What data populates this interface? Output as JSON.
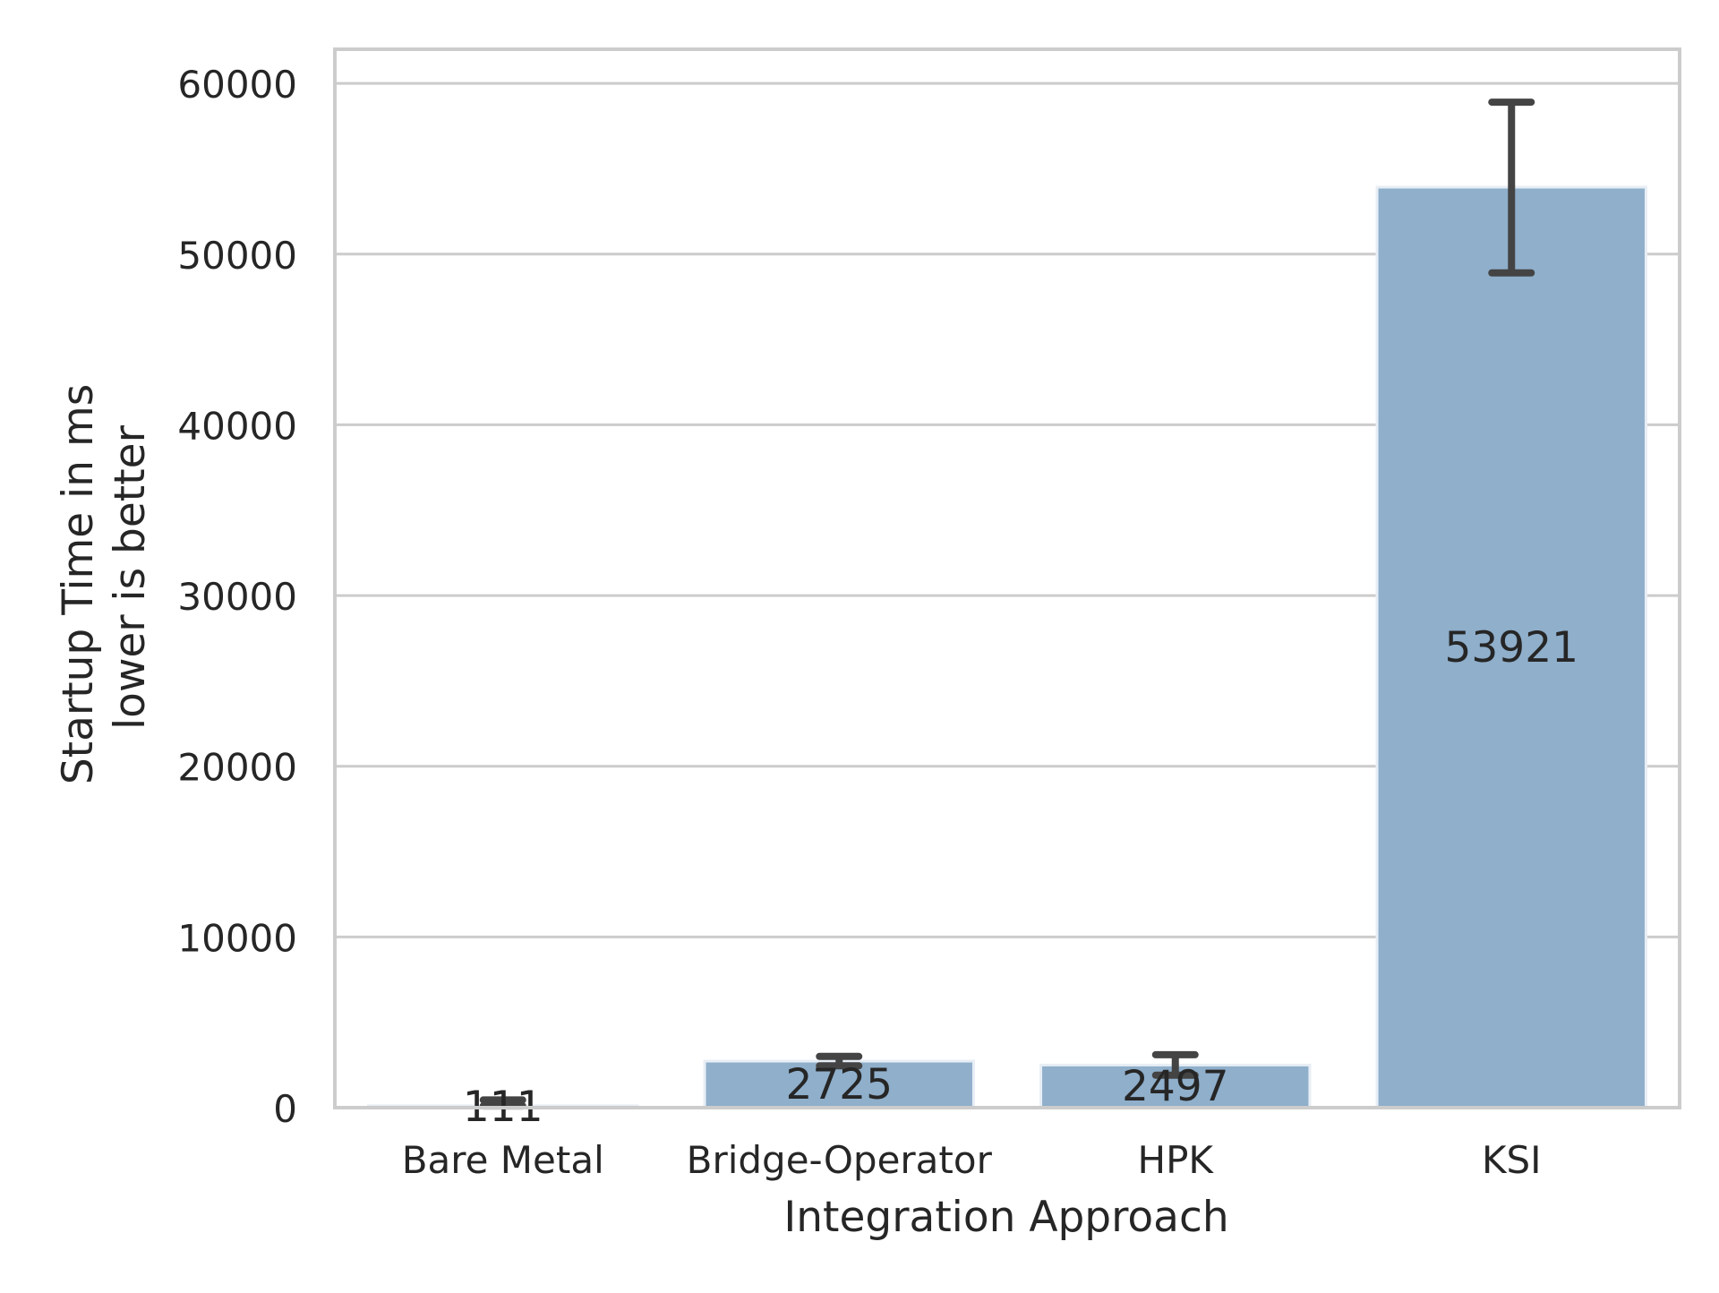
{
  "chart_data": {
    "type": "bar",
    "title": "",
    "xlabel": "Integration Approach",
    "ylabel_lines": [
      "Startup Time in ms",
      "lower is better"
    ],
    "categories": [
      "Bare Metal",
      "Bridge-Operator",
      "HPK",
      "KSI"
    ],
    "values": [
      111,
      2725,
      2497,
      53921
    ],
    "value_labels": [
      "111",
      "2725",
      "2497",
      "53921"
    ],
    "error_bars": [
      {
        "low": 100,
        "high": 450
      },
      {
        "low": 2450,
        "high": 3000
      },
      {
        "low": 1900,
        "high": 3100
      },
      {
        "low": 48900,
        "high": 58900
      }
    ],
    "ylim": [
      0,
      62000
    ],
    "yticks": [
      0,
      10000,
      20000,
      30000,
      40000,
      50000,
      60000
    ],
    "ytick_labels": [
      "0",
      "10000",
      "20000",
      "30000",
      "40000",
      "50000",
      "60000"
    ],
    "grid": "horizontal",
    "legend": "none",
    "colors": {
      "bar": "#8fafcb",
      "bar_edge": "#e8eef5",
      "error": "#444444",
      "grid": "#cccccc",
      "spine": "#cccccc",
      "text": "#262626"
    }
  }
}
